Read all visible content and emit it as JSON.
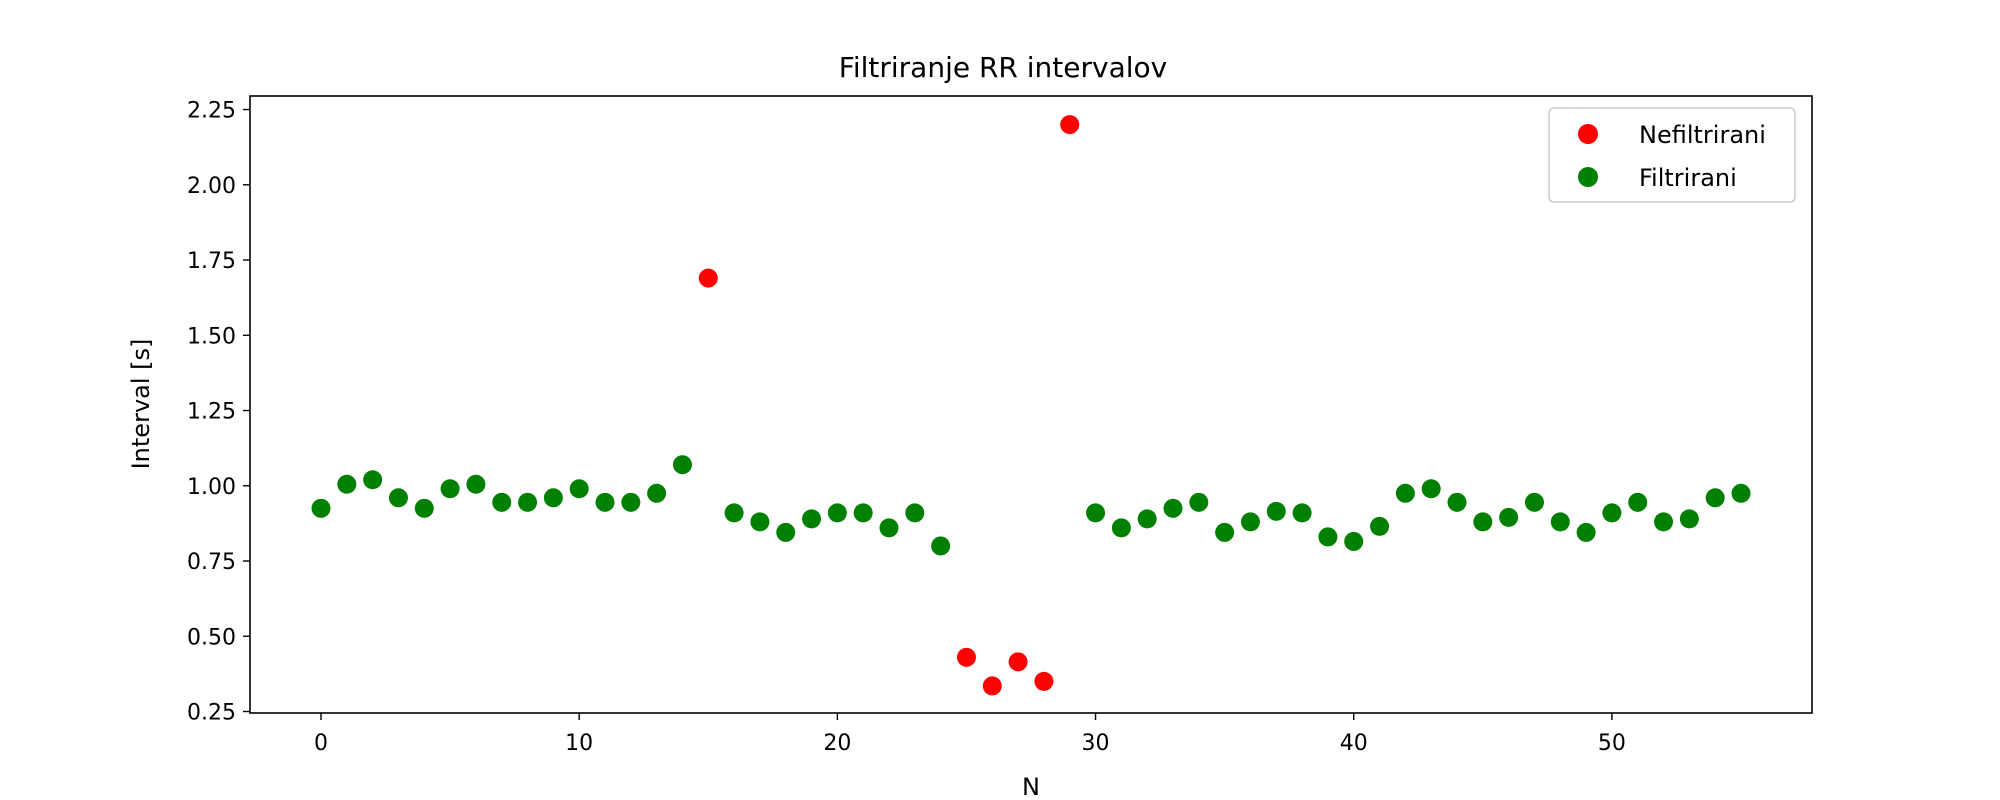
{
  "chart_data": {
    "type": "scatter",
    "title": "Filtriranje RR intervalov",
    "xlabel": "N",
    "ylabel": "Interval [s]",
    "xlim": [
      -2.75,
      57.75
    ],
    "ylim": [
      0.245,
      2.295
    ],
    "xticks": [
      0,
      10,
      20,
      30,
      40,
      50
    ],
    "yticks": [
      0.25,
      0.5,
      0.75,
      1.0,
      1.25,
      1.5,
      1.75,
      2.0,
      2.25
    ],
    "xtick_labels": [
      "0",
      "10",
      "20",
      "30",
      "40",
      "50"
    ],
    "ytick_labels": [
      "0.25",
      "0.50",
      "0.75",
      "1.00",
      "1.25",
      "1.50",
      "1.75",
      "2.00",
      "2.25"
    ],
    "grid": false,
    "legend_position": "top-right",
    "series": [
      {
        "name": "Nefiltrirani",
        "color": "#ff0000",
        "x": [
          15,
          25,
          26,
          27,
          28,
          29
        ],
        "y": [
          1.69,
          0.43,
          0.335,
          0.415,
          0.35,
          2.2
        ]
      },
      {
        "name": "Filtrirani",
        "color": "#008000",
        "x": [
          0,
          1,
          2,
          3,
          4,
          5,
          6,
          7,
          8,
          9,
          10,
          11,
          12,
          13,
          14,
          16,
          17,
          18,
          19,
          20,
          21,
          22,
          23,
          24,
          30,
          31,
          32,
          33,
          34,
          35,
          36,
          37,
          38,
          39,
          40,
          41,
          42,
          43,
          44,
          45,
          46,
          47,
          48,
          49,
          50,
          51,
          52,
          53,
          54,
          55
        ],
        "y": [
          0.925,
          1.005,
          1.02,
          0.96,
          0.925,
          0.99,
          1.005,
          0.945,
          0.945,
          0.96,
          0.99,
          0.945,
          0.945,
          0.975,
          1.07,
          0.91,
          0.88,
          0.845,
          0.89,
          0.91,
          0.91,
          0.86,
          0.91,
          0.8,
          0.91,
          0.86,
          0.89,
          0.925,
          0.945,
          0.845,
          0.88,
          0.915,
          0.91,
          0.83,
          0.815,
          0.865,
          0.975,
          0.99,
          0.945,
          0.88,
          0.895,
          0.945,
          0.88,
          0.845,
          0.91,
          0.945,
          0.88,
          0.89,
          0.96,
          0.975
        ]
      }
    ]
  }
}
